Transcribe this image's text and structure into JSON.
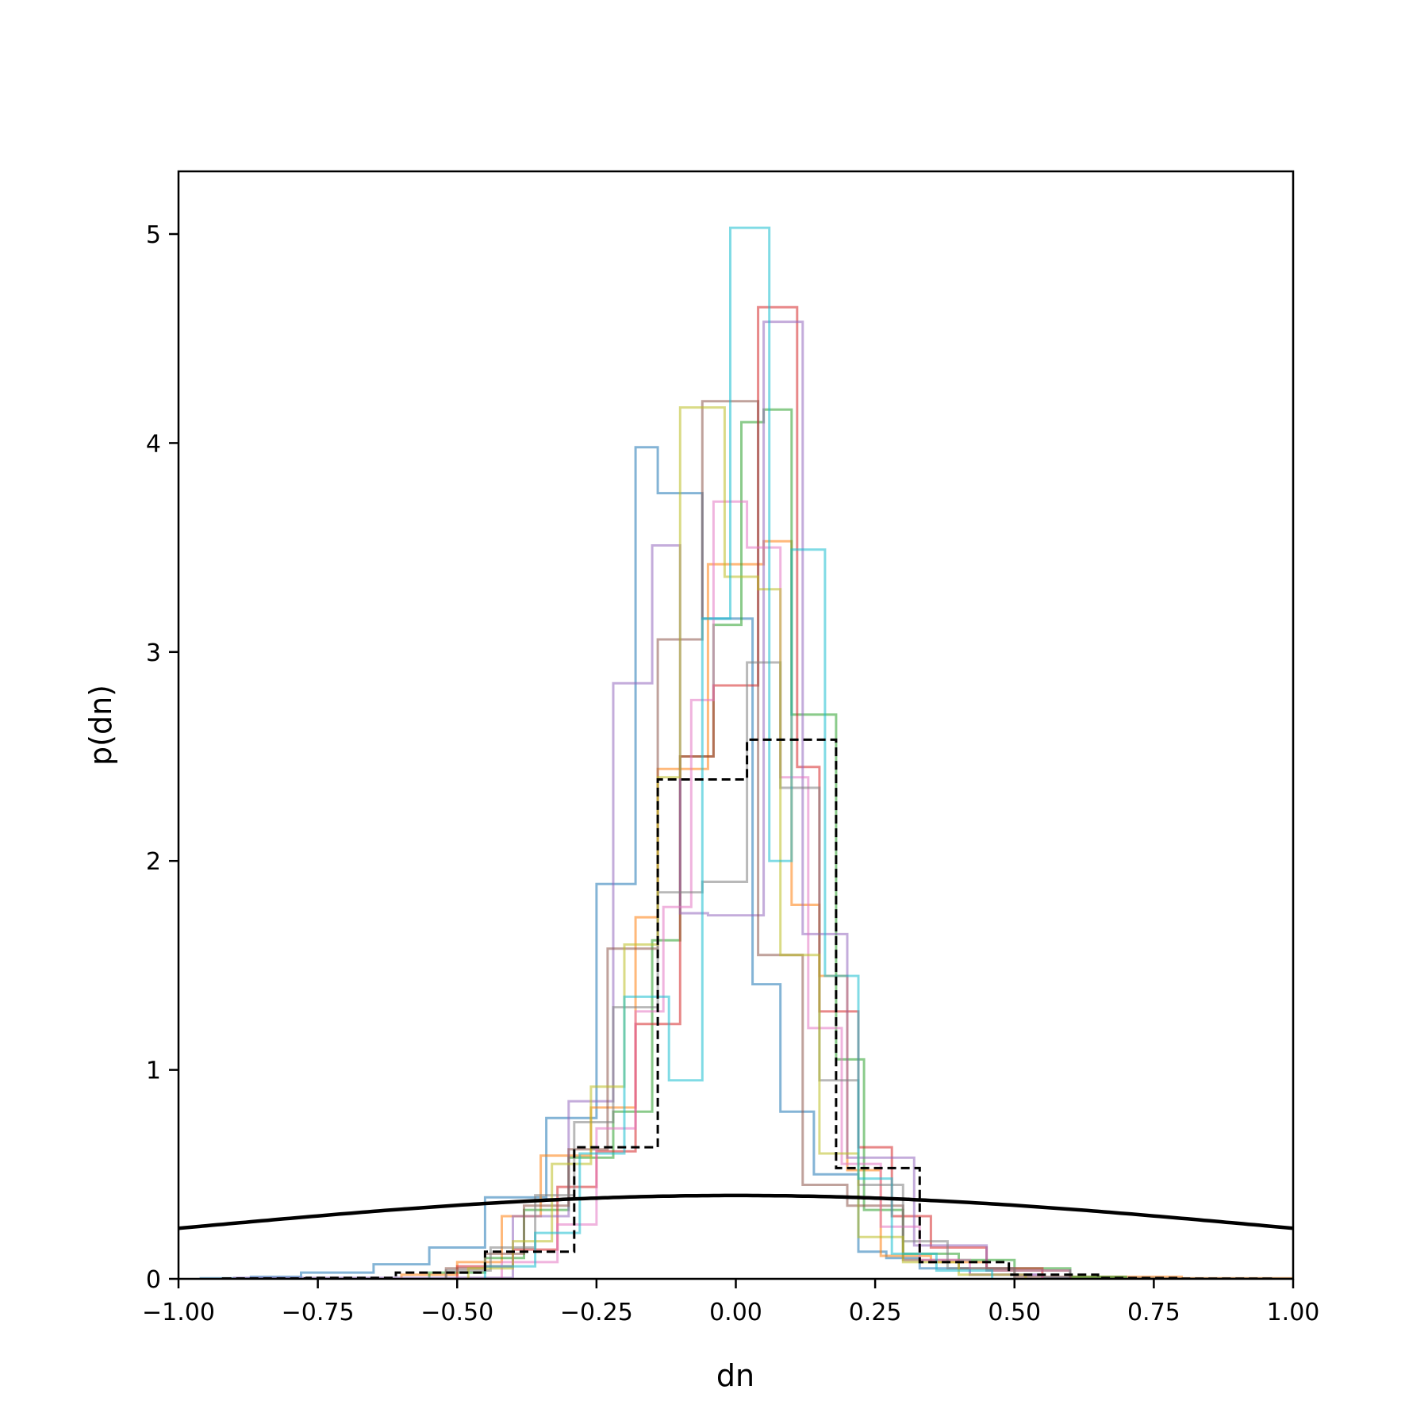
{
  "chart_data": {
    "type": "histogram",
    "xlabel": "dn",
    "ylabel": "p(dn)",
    "xlim": [
      -1.0,
      1.0
    ],
    "ylim": [
      0,
      5.3
    ],
    "xticks": [
      -1.0,
      -0.75,
      -0.5,
      -0.25,
      0.0,
      0.25,
      0.5,
      0.75,
      1.0
    ],
    "xtick_labels": [
      "−1.00",
      "−0.75",
      "−0.50",
      "−0.25",
      "0.00",
      "0.25",
      "0.50",
      "0.75",
      "1.00"
    ],
    "yticks": [
      0,
      1,
      2,
      3,
      4,
      5
    ],
    "ytick_labels": [
      "0",
      "1",
      "2",
      "3",
      "4",
      "5"
    ],
    "grid": false,
    "histograms": [
      {
        "color": "#1f77b4",
        "edges": [
          -0.96,
          -0.87,
          -0.78,
          -0.65,
          -0.55,
          -0.45,
          -0.34,
          -0.25,
          -0.18,
          -0.14,
          -0.06,
          0.03,
          0.08,
          0.14,
          0.22,
          0.27,
          0.33,
          0.42,
          0.55,
          0.75,
          1.0
        ],
        "values": [
          0.003,
          0.01,
          0.03,
          0.07,
          0.15,
          0.39,
          0.77,
          1.89,
          3.98,
          3.76,
          3.16,
          1.41,
          0.8,
          0.5,
          0.13,
          0.1,
          0.05,
          0.02,
          0.005,
          0.002
        ]
      },
      {
        "color": "#ff7f0e",
        "edges": [
          -0.6,
          -0.5,
          -0.42,
          -0.35,
          -0.26,
          -0.18,
          -0.14,
          -0.05,
          0.05,
          0.1,
          0.15,
          0.2,
          0.26,
          0.35,
          0.45,
          0.6,
          0.8,
          1.0
        ],
        "values": [
          0.02,
          0.08,
          0.3,
          0.59,
          0.82,
          1.73,
          2.44,
          3.42,
          3.53,
          1.79,
          1.45,
          0.52,
          0.11,
          0.08,
          0.04,
          0.01,
          0.003
        ]
      },
      {
        "color": "#2ca02c",
        "edges": [
          -0.55,
          -0.45,
          -0.38,
          -0.3,
          -0.22,
          -0.15,
          -0.1,
          -0.04,
          0.01,
          0.05,
          0.1,
          0.18,
          0.23,
          0.3,
          0.4,
          0.5,
          0.6,
          0.7
        ],
        "values": [
          0.03,
          0.1,
          0.33,
          0.58,
          0.8,
          1.62,
          2.5,
          3.13,
          4.1,
          4.16,
          2.7,
          1.05,
          0.33,
          0.12,
          0.09,
          0.05,
          0.01
        ]
      },
      {
        "color": "#d62728",
        "edges": [
          -0.5,
          -0.4,
          -0.32,
          -0.25,
          -0.18,
          -0.1,
          -0.04,
          0.04,
          0.11,
          0.15,
          0.22,
          0.28,
          0.35,
          0.45,
          0.55
        ],
        "values": [
          0.06,
          0.14,
          0.44,
          0.61,
          1.22,
          2.5,
          2.84,
          4.65,
          2.45,
          1.28,
          0.63,
          0.3,
          0.15,
          0.05
        ]
      },
      {
        "color": "#9467bd",
        "edges": [
          -0.9,
          -0.4,
          -0.3,
          -0.22,
          -0.15,
          -0.1,
          -0.05,
          0.05,
          0.12,
          0.2,
          0.32,
          0.45,
          0.6
        ],
        "values": [
          0.005,
          0.3,
          0.85,
          2.85,
          3.51,
          1.75,
          1.74,
          4.58,
          1.65,
          0.58,
          0.16,
          0.04
        ]
      },
      {
        "color": "#8c564b",
        "edges": [
          -0.52,
          -0.45,
          -0.38,
          -0.3,
          -0.23,
          -0.14,
          -0.06,
          0.04,
          0.12,
          0.2,
          0.3,
          0.4,
          0.5,
          0.6
        ],
        "values": [
          0.05,
          0.12,
          0.35,
          0.62,
          1.58,
          3.06,
          4.2,
          1.55,
          0.45,
          0.35,
          0.09,
          0.05,
          0.01
        ]
      },
      {
        "color": "#e377c2",
        "edges": [
          -0.42,
          -0.32,
          -0.25,
          -0.18,
          -0.13,
          -0.08,
          -0.04,
          0.02,
          0.08,
          0.13,
          0.19,
          0.26,
          0.33,
          0.42,
          0.55
        ],
        "values": [
          0.08,
          0.26,
          0.72,
          1.28,
          1.78,
          2.77,
          3.72,
          3.5,
          2.4,
          1.2,
          0.55,
          0.25,
          0.09,
          0.02
        ]
      },
      {
        "color": "#7f7f7f",
        "edges": [
          -0.52,
          -0.44,
          -0.36,
          -0.29,
          -0.22,
          -0.14,
          -0.06,
          0.02,
          0.08,
          0.15,
          0.22,
          0.3,
          0.38,
          0.5
        ],
        "values": [
          0.04,
          0.15,
          0.4,
          0.75,
          1.3,
          1.85,
          1.9,
          2.95,
          2.35,
          0.95,
          0.45,
          0.18,
          0.05
        ]
      },
      {
        "color": "#bcbd22",
        "edges": [
          -0.48,
          -0.4,
          -0.33,
          -0.26,
          -0.2,
          -0.14,
          -0.1,
          -0.02,
          0.04,
          0.08,
          0.15,
          0.22,
          0.3,
          0.4,
          0.52
        ],
        "values": [
          0.05,
          0.18,
          0.55,
          0.92,
          1.6,
          2.4,
          4.17,
          3.36,
          3.3,
          1.55,
          0.6,
          0.2,
          0.08,
          0.02
        ]
      },
      {
        "color": "#17becf",
        "edges": [
          -0.45,
          -0.36,
          -0.28,
          -0.2,
          -0.12,
          -0.06,
          -0.01,
          0.06,
          0.1,
          0.16,
          0.22,
          0.28,
          0.36,
          0.46
        ],
        "values": [
          0.06,
          0.22,
          0.6,
          1.35,
          0.95,
          3.16,
          5.03,
          2.0,
          3.49,
          1.45,
          0.48,
          0.12,
          0.04
        ]
      }
    ],
    "reference_histogram": {
      "color": "#000000",
      "style": "dashed",
      "edges": [
        -0.92,
        -0.77,
        -0.61,
        -0.45,
        -0.29,
        -0.14,
        0.02,
        0.18,
        0.33,
        0.49,
        0.65,
        0.8,
        0.96
      ],
      "values": [
        0.002,
        0.005,
        0.03,
        0.13,
        0.63,
        2.39,
        2.58,
        0.53,
        0.08,
        0.02,
        0.004,
        0.001
      ]
    },
    "reference_curve": {
      "type": "normal_pdf",
      "mean": 0,
      "sd": 1,
      "color": "#000000"
    }
  }
}
